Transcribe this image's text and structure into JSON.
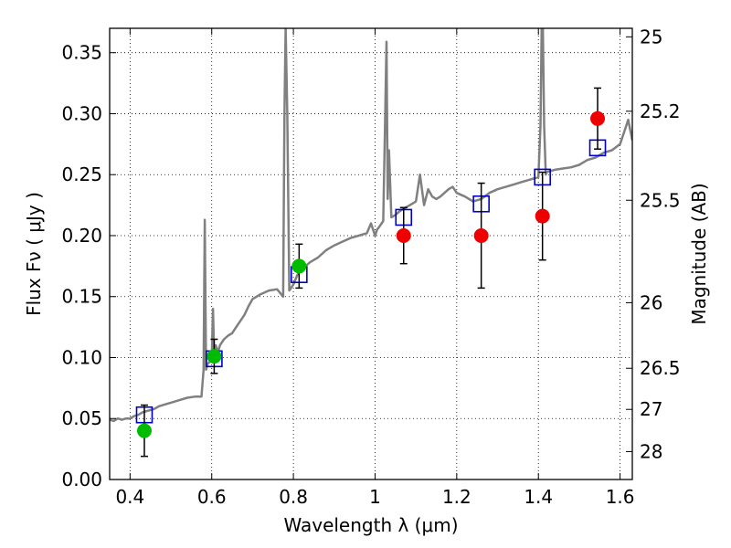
{
  "chart_data": {
    "type": "scatter",
    "xlabel": "Wavelength  λ (μm)",
    "ylabel": "Flux  Fν  ( μJy )",
    "y2label": "Magnitude (AB)",
    "xlim": [
      0.35,
      1.63
    ],
    "ylim": [
      0.0,
      0.37
    ],
    "x_ticks": [
      0.4,
      0.6,
      0.8,
      1.0,
      1.2,
      1.4,
      1.6
    ],
    "x_tick_labels": [
      "0.4",
      "0.6",
      "0.8",
      "1",
      "1.2",
      "1.4",
      "1.6"
    ],
    "y_ticks": [
      0.0,
      0.05,
      0.1,
      0.15,
      0.2,
      0.25,
      0.3,
      0.35
    ],
    "y_tick_labels": [
      "0.00",
      "0.05",
      "0.10",
      "0.15",
      "0.20",
      "0.25",
      "0.30",
      "0.35"
    ],
    "y2_ticks": [
      {
        "label": "25",
        "flux": 0.363
      },
      {
        "label": "25.2",
        "flux": 0.302
      },
      {
        "label": "25.5",
        "flux": 0.229
      },
      {
        "label": "26",
        "flux": 0.145
      },
      {
        "label": "26.5",
        "flux": 0.0912
      },
      {
        "label": "27",
        "flux": 0.0575
      },
      {
        "label": "28",
        "flux": 0.0229
      }
    ],
    "grid": true,
    "colors": {
      "model": "#808080",
      "model_photometry": "#0000cc",
      "optical": "#00bb00",
      "nir": "#ee0000",
      "errorbar": "#000000"
    },
    "spectrum": {
      "x": [
        0.35,
        0.36,
        0.37,
        0.38,
        0.39,
        0.4,
        0.41,
        0.42,
        0.43,
        0.44,
        0.45,
        0.46,
        0.47,
        0.48,
        0.49,
        0.5,
        0.52,
        0.54,
        0.56,
        0.575,
        0.58,
        0.583,
        0.586,
        0.59,
        0.6,
        0.603,
        0.606,
        0.61,
        0.615,
        0.62,
        0.63,
        0.64,
        0.65,
        0.66,
        0.67,
        0.68,
        0.69,
        0.7,
        0.72,
        0.74,
        0.76,
        0.775,
        0.778,
        0.781,
        0.785,
        0.79,
        0.8,
        0.81,
        0.82,
        0.83,
        0.84,
        0.85,
        0.86,
        0.87,
        0.88,
        0.89,
        0.9,
        0.92,
        0.94,
        0.96,
        0.98,
        0.99,
        1.0,
        1.005,
        1.01,
        1.02,
        1.025,
        1.028,
        1.031,
        1.034,
        1.04,
        1.05,
        1.06,
        1.07,
        1.08,
        1.09,
        1.1,
        1.11,
        1.12,
        1.13,
        1.14,
        1.15,
        1.16,
        1.17,
        1.18,
        1.19,
        1.2,
        1.22,
        1.24,
        1.26,
        1.28,
        1.3,
        1.32,
        1.34,
        1.36,
        1.38,
        1.4,
        1.405,
        1.408,
        1.411,
        1.414,
        1.418,
        1.42,
        1.44,
        1.46,
        1.48,
        1.5,
        1.52,
        1.54,
        1.56,
        1.58,
        1.6,
        1.61,
        1.62,
        1.63
      ],
      "y": [
        0.049,
        0.048,
        0.05,
        0.049,
        0.05,
        0.05,
        0.052,
        0.053,
        0.055,
        0.056,
        0.057,
        0.058,
        0.06,
        0.061,
        0.062,
        0.063,
        0.065,
        0.067,
        0.068,
        0.068,
        0.09,
        0.213,
        0.09,
        0.095,
        0.098,
        0.14,
        0.1,
        0.11,
        0.104,
        0.11,
        0.115,
        0.118,
        0.12,
        0.125,
        0.13,
        0.135,
        0.142,
        0.148,
        0.152,
        0.155,
        0.156,
        0.15,
        0.3,
        0.37,
        0.3,
        0.155,
        0.16,
        0.168,
        0.172,
        0.175,
        0.178,
        0.18,
        0.182,
        0.185,
        0.188,
        0.19,
        0.192,
        0.195,
        0.198,
        0.2,
        0.202,
        0.21,
        0.2,
        0.205,
        0.207,
        0.212,
        0.3,
        0.359,
        0.23,
        0.27,
        0.215,
        0.217,
        0.22,
        0.222,
        0.224,
        0.226,
        0.228,
        0.25,
        0.225,
        0.238,
        0.232,
        0.23,
        0.232,
        0.235,
        0.238,
        0.24,
        0.235,
        0.232,
        0.228,
        0.23,
        0.235,
        0.238,
        0.24,
        0.242,
        0.244,
        0.246,
        0.248,
        0.29,
        0.37,
        0.37,
        0.29,
        0.25,
        0.252,
        0.254,
        0.255,
        0.256,
        0.258,
        0.262,
        0.264,
        0.268,
        0.27,
        0.275,
        0.285,
        0.295,
        0.278
      ]
    },
    "model_photometry": {
      "x": [
        0.435,
        0.606,
        0.814,
        1.07,
        1.26,
        1.41,
        1.545
      ],
      "y": [
        0.053,
        0.099,
        0.168,
        0.215,
        0.226,
        0.248,
        0.272
      ]
    },
    "optical": {
      "x": [
        0.435,
        0.606,
        0.814
      ],
      "y": [
        0.04,
        0.101,
        0.175
      ],
      "yerr": [
        0.021,
        0.014,
        0.018
      ]
    },
    "nir": {
      "x": [
        1.07,
        1.26,
        1.41,
        1.545
      ],
      "y": [
        0.2,
        0.2,
        0.216,
        0.296
      ],
      "yerr": [
        0.023,
        0.043,
        0.036,
        0.025
      ]
    }
  }
}
